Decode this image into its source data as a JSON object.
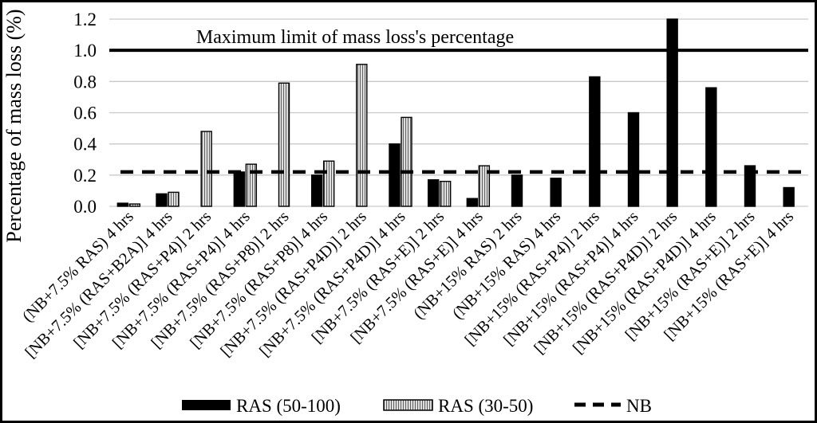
{
  "figure": {
    "background": "#ffffff",
    "frame_color": "#000000"
  },
  "chart_data": {
    "type": "bar",
    "title": "",
    "xlabel": "",
    "ylabel": "Percentage of mass loss (%)",
    "ylim": [
      0,
      1.2
    ],
    "ytick_step": 0.2,
    "ytick_labels": [
      "0.0",
      "0.2",
      "0.4",
      "0.6",
      "0.8",
      "1.0",
      "1.2"
    ],
    "grid": "horizontal",
    "grid_color": "#c9c9c9",
    "legend_position": "bottom",
    "categories": [
      "(NB+7.5% RAS) 4 hrs",
      "[NB+7.5% (RAS+B2A)] 4 hrs",
      "[NB+7.5% (RAS+P4)] 2 hrs",
      "[NB+7.5% (RAS+P4)] 4 hrs",
      "[NB+7.5% (RAS+P8)] 2 hrs",
      "[NB+7.5% (RAS+P8)] 4 hrs",
      "[NB+7.5% (RAS+P4D)] 2 hrs",
      "[NB+7.5% (RAS+P4D)] 4 hrs",
      "[NB+7.5% (RAS+E)] 2 hrs",
      "[NB+7.5% (RAS+E)] 4 hrs",
      "(NB+15% RAS) 2 hrs",
      "(NB+15% RAS) 4 hrs",
      "[NB+15% (RAS+P4)] 2 hrs",
      "[NB+15% (RAS+P4)] 4 hrs",
      "[NB+15% (RAS+P4D)] 2 hrs",
      "[NB+15% (RAS+P4D)] 4 hrs",
      "[NB+15% (RAS+E)] 2 hrs",
      "[NB+15% (RAS+E)] 4 hrs"
    ],
    "series": [
      {
        "name": "RAS (50-100)",
        "swatch": "solid",
        "color": "#000000",
        "values": [
          0.02,
          0.08,
          null,
          0.22,
          null,
          0.2,
          null,
          0.4,
          0.17,
          0.05,
          0.2,
          0.18,
          0.83,
          0.6,
          1.2,
          0.76,
          0.26,
          0.12
        ]
      },
      {
        "name": "RAS (30-50)",
        "swatch": "hatched",
        "color": "#ececec",
        "stripe_color": "#606060",
        "values": [
          0.015,
          0.09,
          0.48,
          0.27,
          0.79,
          0.29,
          0.91,
          0.57,
          0.16,
          0.26,
          null,
          null,
          null,
          null,
          null,
          null,
          null,
          null
        ]
      }
    ],
    "reference_lines": [
      {
        "name": "NB",
        "value": 0.22,
        "style": "dashed",
        "color": "#000000",
        "annotation": ""
      },
      {
        "name": "maximum-limit",
        "value": 1.0,
        "style": "solid",
        "color": "#000000",
        "annotation": "Maximum limit of mass loss's percentage"
      }
    ],
    "legend": [
      {
        "label": "RAS (50-100)",
        "swatch": "solid"
      },
      {
        "label": "RAS (30-50)",
        "swatch": "hatched"
      },
      {
        "label": "NB",
        "swatch": "dashed-line"
      }
    ]
  }
}
